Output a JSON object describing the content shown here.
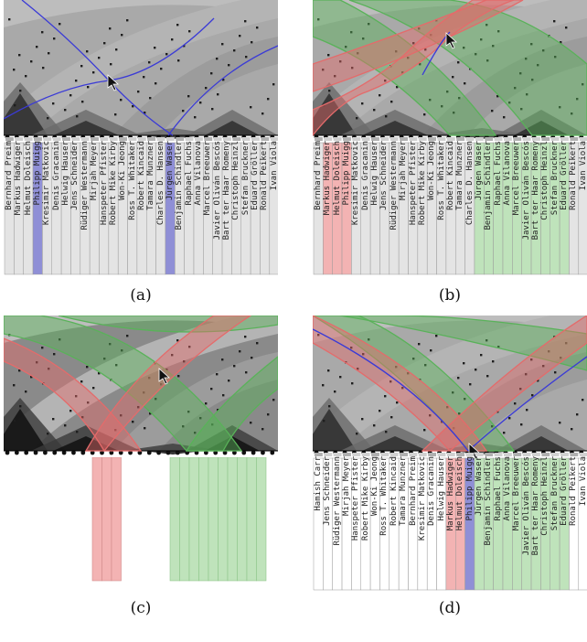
{
  "captions": [
    "(a)",
    "(b)",
    "(c)",
    "(d)"
  ],
  "panels": {
    "a": {
      "names": [
        "Bernhard Preim",
        "Markus Hadwiger",
        "Helmut Doleisch",
        "Philipp Muigg",
        "Kresimir Matkovic",
        "Denis Gracanin",
        "Helwig Hauser",
        "Jens Schneider",
        "Rüdiger Westermann",
        "Mirjah Meyer",
        "Hanspeter Pfister",
        "Robert Mike Kirby",
        "Won-Ki Jeong",
        "Ross T. Whitaker",
        "Robert Kincaid",
        "Tamara Munzner",
        "Charles D. Hansen",
        "Jürgen Waser",
        "Benjamin Schindler",
        "Raphael Fuchs",
        "Anna Vilanova",
        "Marcel Breeuwer",
        "Javier Oliván Bescós",
        "Bart ter Haar Romeny",
        "Christoph Heinzl",
        "Stefan Bruckner",
        "Eduard Gröller",
        "Ronald Peikert",
        "Ivan Viola"
      ],
      "highlight": [
        "Philipp Muigg",
        "Jürgen Waser"
      ]
    },
    "b": {
      "names": [
        "Bernhard Preim",
        "Markus Hadwiger",
        "Helmut Doleisch",
        "Philipp Muigg",
        "Kresimir Matkovic",
        "Denis Gracanin",
        "Helwig Hauser",
        "Jens Schneider",
        "Rüdiger Westermann",
        "Mirjah Meyer",
        "Hanspeter Pfister",
        "Robert Mike Kirby",
        "Won-Ki Jeong",
        "Ross T. Whitaker",
        "Robert Kincaid",
        "Tamara Munzner",
        "Charles D. Hansen",
        "Jürgen Waser",
        "Benjamin Schindler",
        "Raphael Fuchs",
        "Anna Vilanova",
        "Marcel Breeuwer",
        "Javier Oliván Bescós",
        "Bart ter Haar Romeny",
        "Christoph Heinzl",
        "Stefan Bruckner",
        "Eduard Gröller",
        "Ronald Peikert",
        "Ivan Viola"
      ],
      "red": [
        "Markus Hadwiger",
        "Helmut Doleisch",
        "Philipp Muigg"
      ],
      "green": [
        "Jürgen Waser",
        "Benjamin Schindler",
        "Raphael Fuchs",
        "Anna Vilanova",
        "Marcel Breeuwer",
        "Javier Oliván Bescós",
        "Bart ter Haar Romeny",
        "Christoph Heinzl",
        "Stefan Bruckner",
        "Eduard Gröller"
      ]
    },
    "d": {
      "names": [
        "Hamish Carr",
        "Jens Schneider",
        "Rüdiger Westermann",
        "Mirjah Meyer",
        "Hanspeter Pfister",
        "Robert Mike Kirby",
        "Won-Ki Jeong",
        "Ross T. Whitaker",
        "Robert Kincaid",
        "Tamara Munzner",
        "Bernhard Preim",
        "Kresimir Matkovic",
        "Denis Gracanin",
        "Helwig Hauser",
        "Markus Hadwiger",
        "Helmut Doleisch",
        "Philipp Muigg",
        "Jürgen Waser",
        "Benjamin Schindler",
        "Raphael Fuchs",
        "Anna Vilanova",
        "Marcel Breeuwer",
        "Javier Oliván Bescós",
        "Bart ter Haar Romeny",
        "Christoph Heinzl",
        "Stefan Bruckner",
        "Eduard Gröller",
        "Ronald Peikert",
        "Ivan Viola"
      ],
      "red": [
        "Markus Hadwiger",
        "Helmut Doleisch"
      ],
      "blue": [
        "Philipp Muigg"
      ],
      "green": [
        "Jürgen Waser",
        "Benjamin Schindler",
        "Raphael Fuchs",
        "Anna Vilanova",
        "Marcel Breeuwer",
        "Javier Oliván Bescós",
        "Bart ter Haar Romeny",
        "Christoph Heinzl",
        "Stefan Bruckner",
        "Eduard Gröller"
      ]
    }
  },
  "colors": {
    "matrix_bg": "#a9a9a9",
    "band_red": "#e46b6b",
    "band_green": "#59b259",
    "band_blue": "#3b3bd6",
    "strip_red": "#f3b3b3",
    "strip_green": "#bfe3bb",
    "strip_blue": "#8f8fd6",
    "strip_gray": "#e4e4e4"
  }
}
